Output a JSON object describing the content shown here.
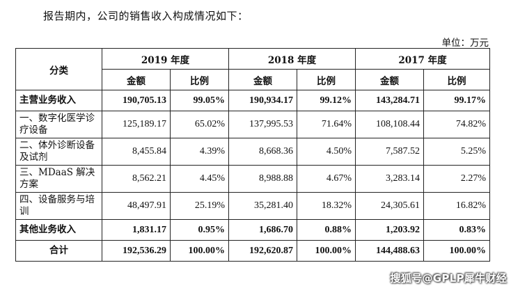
{
  "intro": "报告期内，公司的销售收入构成情况如下：",
  "unit": "单位：万元",
  "table": {
    "category_header": "分类",
    "years": [
      "2019 年度",
      "2018 年度",
      "2017 年度"
    ],
    "sub_headers": [
      "金额",
      "比例"
    ],
    "rows": [
      {
        "label": "主营业务收入",
        "bold": true,
        "values": [
          "190,705.13",
          "99.05%",
          "190,934.17",
          "99.12%",
          "143,284.71",
          "99.17%"
        ]
      },
      {
        "label": "一、数字化医学诊疗设备",
        "bold": false,
        "values": [
          "125,189.17",
          "65.02%",
          "137,995.53",
          "71.64%",
          "108,108.44",
          "74.82%"
        ]
      },
      {
        "label": "二、体外诊断设备及试剂",
        "bold": false,
        "values": [
          "8,455.84",
          "4.39%",
          "8,668.36",
          "4.50%",
          "7,587.52",
          "5.25%"
        ]
      },
      {
        "label": "三、MDaaS 解决方案",
        "bold": false,
        "values": [
          "8,562.21",
          "4.45%",
          "8,988.88",
          "4.67%",
          "3,283.14",
          "2.27%"
        ]
      },
      {
        "label": "四、设备服务与培训",
        "bold": false,
        "values": [
          "48,497.91",
          "25.19%",
          "35,281.40",
          "18.32%",
          "24,305.61",
          "16.82%"
        ]
      },
      {
        "label": "其他业务收入",
        "bold": true,
        "values": [
          "1,831.17",
          "0.95%",
          "1,686.70",
          "0.88%",
          "1,203.92",
          "0.83%"
        ]
      },
      {
        "label": "合计",
        "bold": true,
        "values": [
          "192,536.29",
          "100.00%",
          "192,620.87",
          "100.00%",
          "144,488.63",
          "100.00%"
        ]
      }
    ]
  },
  "watermark": "搜狐号@GPLP犀牛财经"
}
